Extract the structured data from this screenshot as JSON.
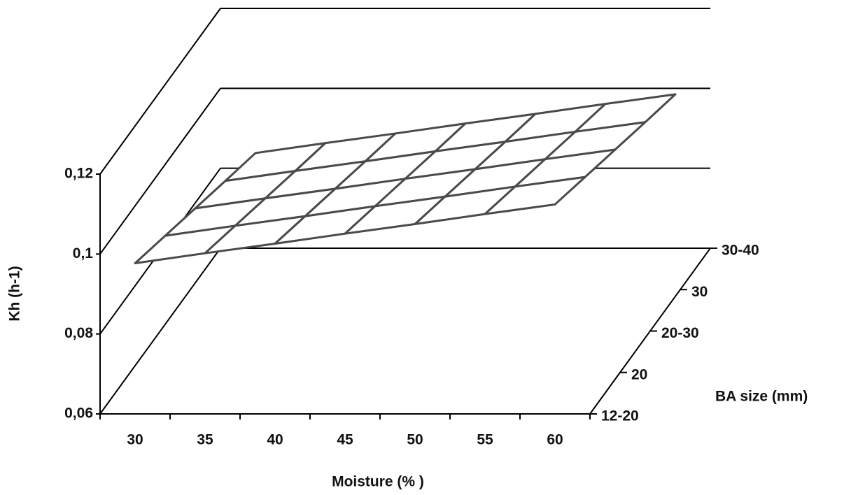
{
  "chart_data": {
    "type": "surface3d",
    "x_label": "Moisture (% )",
    "y_label": "Kh (h-1)",
    "z_label": "BA size (mm)",
    "categories": [
      "30",
      "35",
      "40",
      "45",
      "50",
      "55",
      "60"
    ],
    "z_categories": [
      "12-20",
      "20",
      "20-30",
      "30",
      "30-40"
    ],
    "values": [
      [
        0.0977,
        0.1002,
        0.1026,
        0.1051,
        0.1075,
        0.11,
        0.1124
      ],
      [
        0.0942,
        0.0967,
        0.0991,
        0.1016,
        0.104,
        0.1065,
        0.1089
      ],
      [
        0.0907,
        0.0932,
        0.0956,
        0.0981,
        0.1005,
        0.103,
        0.1054
      ],
      [
        0.0872,
        0.0897,
        0.0921,
        0.0946,
        0.097,
        0.0995,
        0.1019
      ],
      [
        0.0838,
        0.0863,
        0.0887,
        0.0912,
        0.0936,
        0.0961,
        0.0985
      ]
    ],
    "ylim": [
      0.06,
      0.12
    ],
    "yticks": [
      {
        "value": 0.06,
        "label": "0,06"
      },
      {
        "value": 0.08,
        "label": "0,08"
      },
      {
        "value": 0.1,
        "label": "0,1"
      },
      {
        "value": 0.12,
        "label": "0,12"
      }
    ],
    "color": "#ffffff",
    "edge_color": "#4a4a4a"
  }
}
